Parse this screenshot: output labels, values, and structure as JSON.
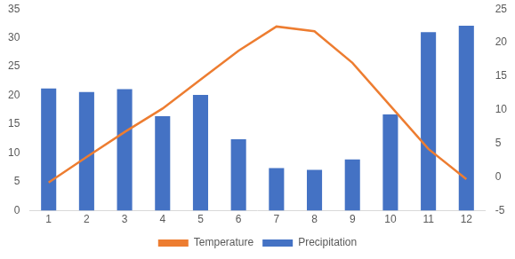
{
  "chart_data": {
    "type": "bar",
    "categories": [
      "1",
      "2",
      "3",
      "4",
      "5",
      "6",
      "7",
      "8",
      "9",
      "10",
      "11",
      "12"
    ],
    "series": [
      {
        "name": "Precipitation",
        "type": "bar",
        "color": "#4472c4",
        "values": [
          21.2,
          20.6,
          21.1,
          16.4,
          20.1,
          12.4,
          7.4,
          7.1,
          8.9,
          16.7,
          31.0,
          32.1
        ]
      },
      {
        "name": "Temperature",
        "type": "line",
        "color": "#ed7d31",
        "axis": "y2",
        "marker": "none",
        "values": [
          -0.8,
          3.0,
          6.7,
          10.2,
          14.5,
          18.8,
          22.4,
          21.7,
          17.0,
          10.6,
          4.2,
          -0.3
        ]
      }
    ],
    "ylim": [
      0,
      35
    ],
    "yticks": [
      0,
      5,
      10,
      15,
      20,
      25,
      30,
      35
    ],
    "y2lim": [
      -5,
      25
    ],
    "y2ticks": [
      -5,
      0,
      5,
      10,
      15,
      20,
      25
    ],
    "grid": false,
    "legend": "bottom"
  }
}
